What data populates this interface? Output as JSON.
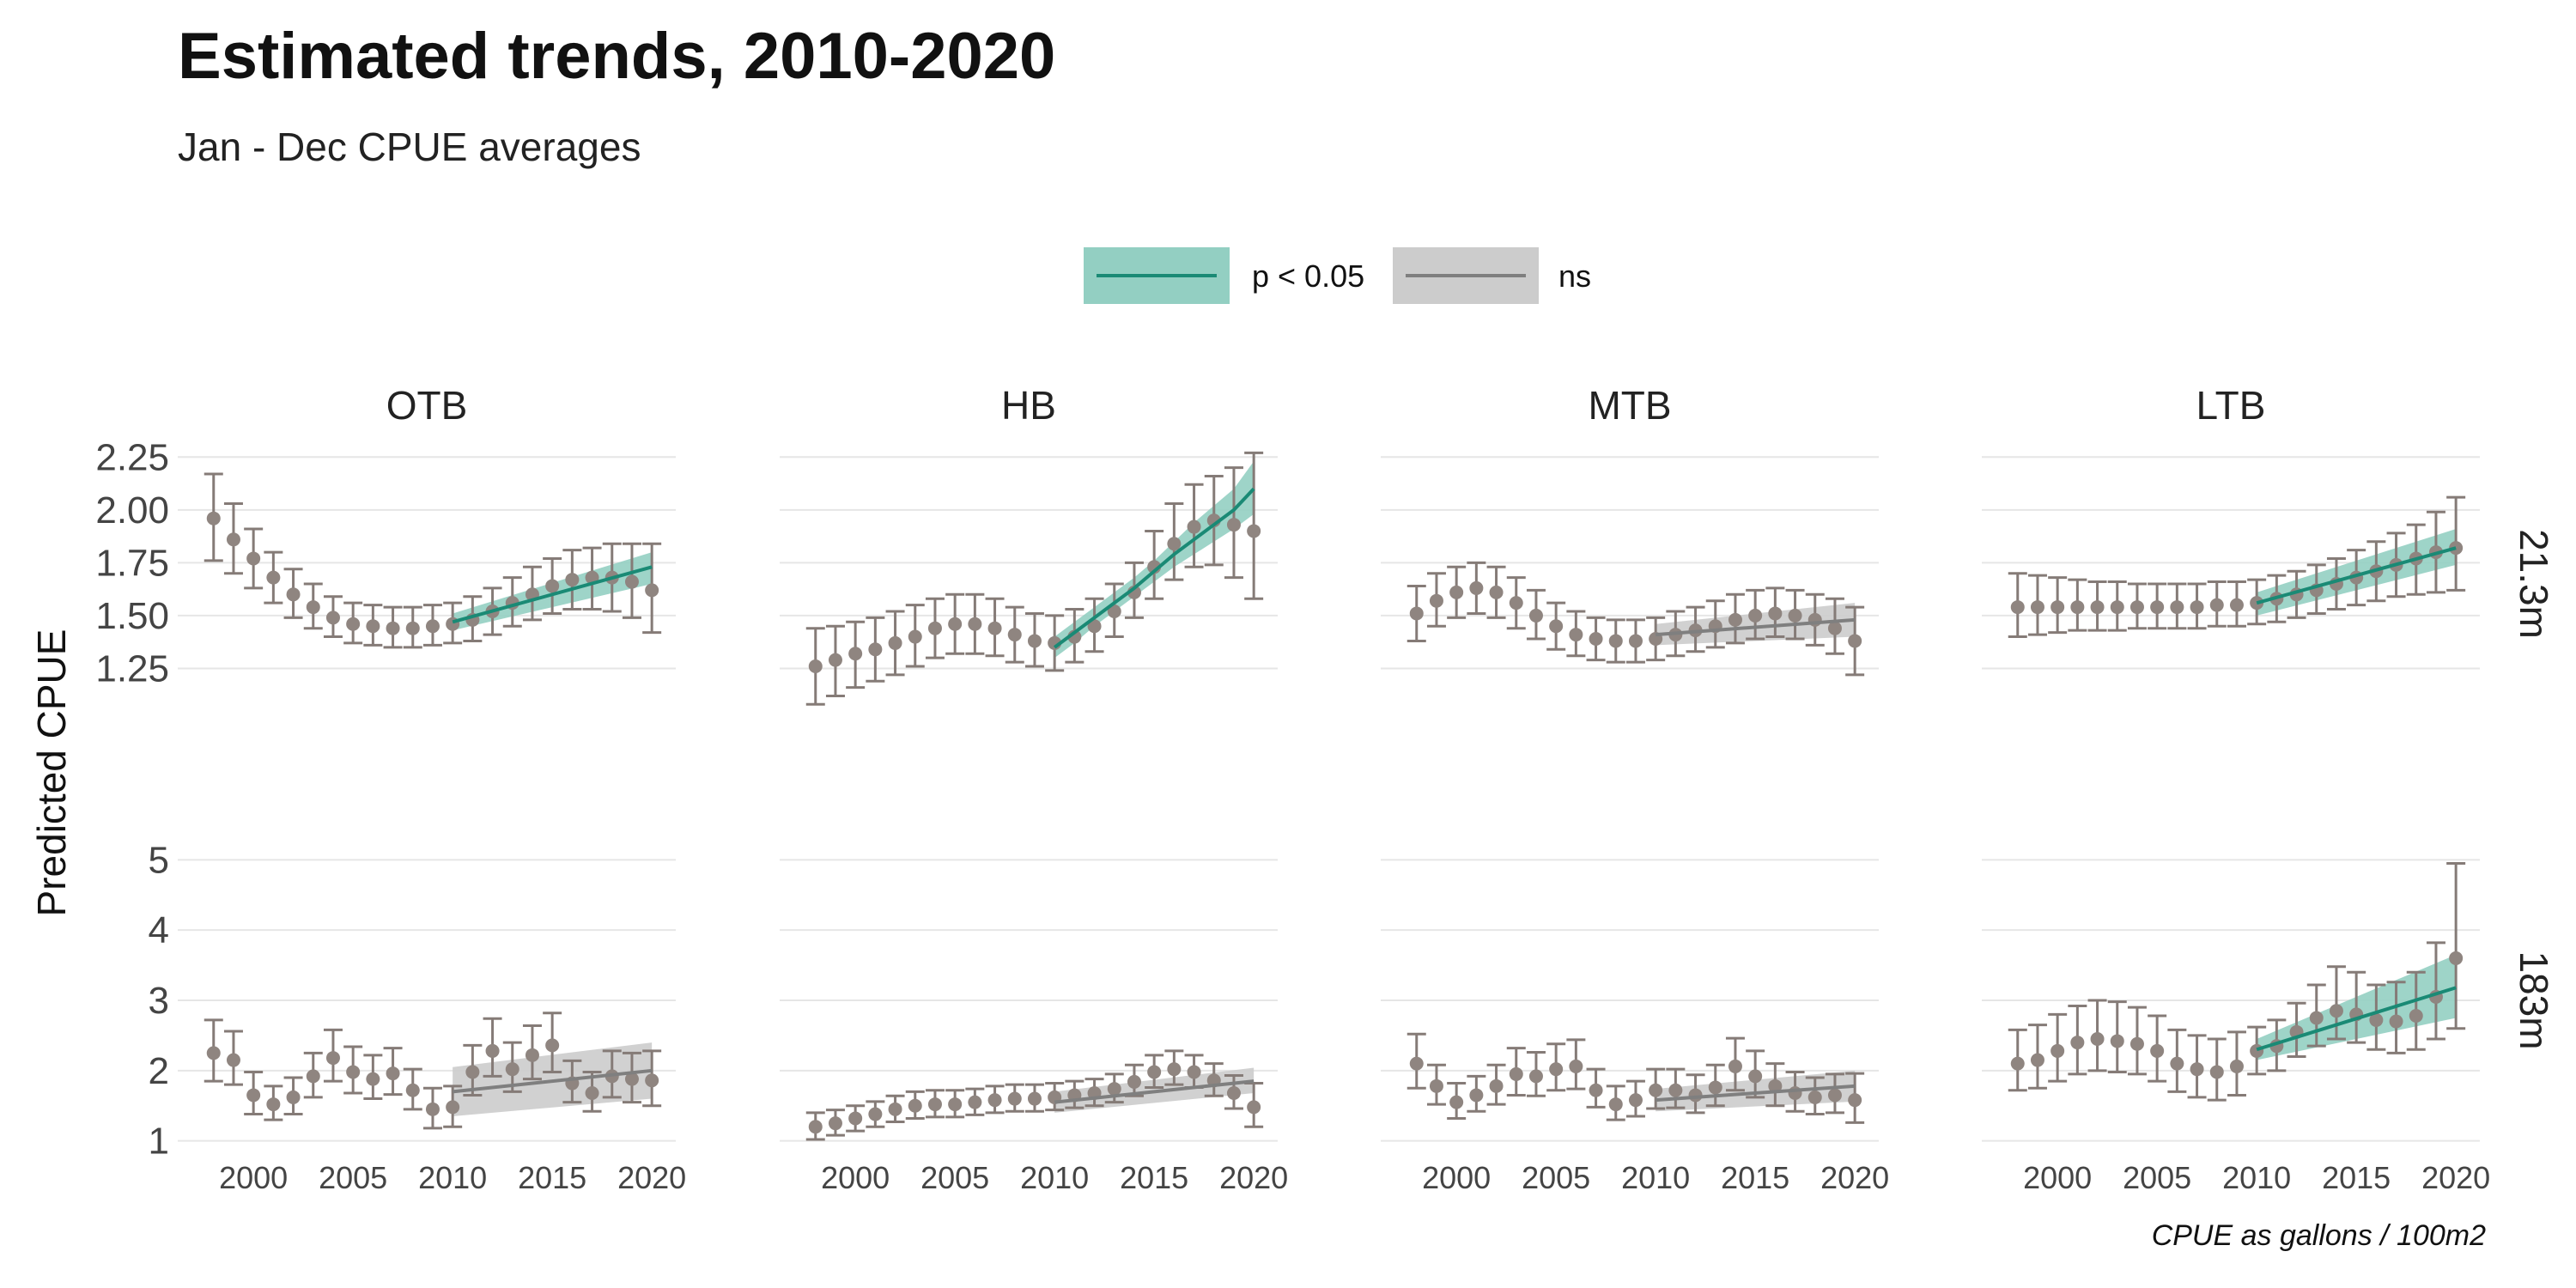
{
  "title": "Estimated trends, 2010-2020",
  "subtitle": "Jan - Dec CPUE averages",
  "caption": "CPUE as gallons / 100m2",
  "colors": {
    "significant": "#1a8a75",
    "significant_band": "#93cfc2",
    "ns_line": "#7f7f7f",
    "ns_band": "#cccccc",
    "points": "#8f8580",
    "grid": "#e6e6e6"
  },
  "chart_data": {
    "type": "scatter",
    "title": "Estimated trends, 2010-2020",
    "subtitle": "Jan - Dec CPUE averages",
    "ylabel": "Predicted CPUE",
    "xlabel": "",
    "caption": "CPUE as gallons / 100m2",
    "legend": {
      "placement": "top-center",
      "entries": [
        {
          "key": "sig",
          "label": "p < 0.05"
        },
        {
          "key": "ns",
          "label": "ns"
        }
      ]
    },
    "columns": [
      "OTB",
      "HB",
      "MTB",
      "LTB"
    ],
    "rows": [
      "21.3m",
      "183m"
    ],
    "x": [
      1998,
      1999,
      2000,
      2001,
      2002,
      2003,
      2004,
      2005,
      2006,
      2007,
      2008,
      2009,
      2010,
      2011,
      2012,
      2013,
      2014,
      2015,
      2016,
      2017,
      2018,
      2019,
      2020
    ],
    "xlim": [
      1996.2,
      2021.2
    ],
    "xticks": [
      2000,
      2005,
      2010,
      2015,
      2020
    ],
    "row_scales": {
      "21.3m": {
        "ylim": [
          1.0,
          2.3
        ],
        "yticks": [
          1.25,
          1.5,
          1.75,
          2.0,
          2.25
        ],
        "tick_labels": [
          "1.25",
          "1.50",
          "1.75",
          "2.00",
          "2.25"
        ]
      },
      "183m": {
        "ylim": [
          0.8,
          5.2
        ],
        "yticks": [
          1,
          2,
          3,
          4,
          5
        ],
        "tick_labels": [
          "1",
          "2",
          "3",
          "4",
          "5"
        ]
      }
    },
    "panels": [
      {
        "column": "OTB",
        "row": "21.3m",
        "trend": "sig",
        "y": [
          1.96,
          1.86,
          1.77,
          1.68,
          1.6,
          1.54,
          1.49,
          1.46,
          1.45,
          1.44,
          1.44,
          1.45,
          1.46,
          1.48,
          1.52,
          1.56,
          1.6,
          1.64,
          1.67,
          1.68,
          1.68,
          1.66,
          1.62
        ],
        "lo": [
          1.76,
          1.7,
          1.63,
          1.56,
          1.49,
          1.44,
          1.4,
          1.37,
          1.36,
          1.35,
          1.35,
          1.36,
          1.37,
          1.38,
          1.41,
          1.45,
          1.48,
          1.51,
          1.53,
          1.53,
          1.52,
          1.49,
          1.42
        ],
        "hi": [
          2.17,
          2.03,
          1.91,
          1.8,
          1.72,
          1.65,
          1.59,
          1.56,
          1.55,
          1.54,
          1.54,
          1.55,
          1.56,
          1.59,
          1.63,
          1.68,
          1.73,
          1.77,
          1.81,
          1.82,
          1.84,
          1.84,
          1.84
        ],
        "fit_x": [
          2010,
          2020
        ],
        "fit_y": [
          1.47,
          1.73
        ],
        "band_lo": [
          1.43,
          1.65
        ],
        "band_hi": [
          1.51,
          1.8
        ]
      },
      {
        "column": "HB",
        "row": "21.3m",
        "trend": "sig",
        "y": [
          1.26,
          1.29,
          1.32,
          1.34,
          1.37,
          1.4,
          1.44,
          1.46,
          1.46,
          1.44,
          1.41,
          1.38,
          1.37,
          1.4,
          1.45,
          1.52,
          1.61,
          1.73,
          1.84,
          1.92,
          1.95,
          1.93,
          1.9
        ],
        "lo": [
          1.08,
          1.12,
          1.16,
          1.19,
          1.22,
          1.26,
          1.3,
          1.32,
          1.32,
          1.31,
          1.28,
          1.26,
          1.24,
          1.28,
          1.33,
          1.4,
          1.49,
          1.58,
          1.67,
          1.73,
          1.74,
          1.68,
          1.58
        ],
        "hi": [
          1.44,
          1.45,
          1.47,
          1.49,
          1.52,
          1.55,
          1.58,
          1.6,
          1.6,
          1.58,
          1.54,
          1.51,
          1.5,
          1.53,
          1.58,
          1.65,
          1.75,
          1.9,
          2.03,
          2.12,
          2.16,
          2.2,
          2.27
        ],
        "fit_x": [
          2010,
          2011,
          2012,
          2013,
          2014,
          2015,
          2016,
          2017,
          2018,
          2019,
          2020
        ],
        "fit_y": [
          1.35,
          1.42,
          1.49,
          1.56,
          1.63,
          1.71,
          1.79,
          1.86,
          1.93,
          2.0,
          2.1
        ],
        "band_lo": [
          1.3,
          1.37,
          1.45,
          1.52,
          1.59,
          1.66,
          1.73,
          1.79,
          1.85,
          1.91,
          1.98
        ],
        "band_hi": [
          1.4,
          1.47,
          1.54,
          1.61,
          1.68,
          1.76,
          1.85,
          1.94,
          2.02,
          2.1,
          2.23
        ]
      },
      {
        "column": "MTB",
        "row": "21.3m",
        "trend": "ns",
        "y": [
          1.51,
          1.57,
          1.61,
          1.63,
          1.61,
          1.56,
          1.5,
          1.45,
          1.41,
          1.39,
          1.38,
          1.38,
          1.39,
          1.41,
          1.43,
          1.45,
          1.48,
          1.5,
          1.51,
          1.5,
          1.48,
          1.44,
          1.38
        ],
        "lo": [
          1.38,
          1.45,
          1.49,
          1.51,
          1.49,
          1.44,
          1.39,
          1.34,
          1.31,
          1.29,
          1.28,
          1.28,
          1.29,
          1.31,
          1.33,
          1.35,
          1.37,
          1.39,
          1.4,
          1.39,
          1.36,
          1.32,
          1.22
        ],
        "hi": [
          1.64,
          1.7,
          1.73,
          1.75,
          1.73,
          1.68,
          1.62,
          1.56,
          1.52,
          1.49,
          1.48,
          1.48,
          1.49,
          1.52,
          1.54,
          1.57,
          1.6,
          1.62,
          1.63,
          1.62,
          1.6,
          1.58,
          1.54
        ],
        "fit_x": [
          2010,
          2020
        ],
        "fit_y": [
          1.41,
          1.48
        ],
        "band_lo": [
          1.36,
          1.4
        ],
        "band_hi": [
          1.46,
          1.56
        ]
      },
      {
        "column": "LTB",
        "row": "21.3m",
        "trend": "sig",
        "y": [
          1.54,
          1.54,
          1.54,
          1.54,
          1.54,
          1.54,
          1.54,
          1.54,
          1.54,
          1.54,
          1.55,
          1.55,
          1.56,
          1.58,
          1.6,
          1.62,
          1.65,
          1.68,
          1.71,
          1.74,
          1.77,
          1.8,
          1.82
        ],
        "lo": [
          1.4,
          1.41,
          1.42,
          1.43,
          1.43,
          1.43,
          1.44,
          1.44,
          1.44,
          1.44,
          1.45,
          1.45,
          1.46,
          1.47,
          1.49,
          1.51,
          1.53,
          1.55,
          1.57,
          1.59,
          1.6,
          1.61,
          1.62
        ],
        "hi": [
          1.7,
          1.69,
          1.68,
          1.67,
          1.66,
          1.66,
          1.65,
          1.65,
          1.65,
          1.65,
          1.66,
          1.66,
          1.67,
          1.69,
          1.71,
          1.74,
          1.77,
          1.81,
          1.85,
          1.89,
          1.93,
          1.99,
          2.06
        ],
        "fit_x": [
          2010,
          2020
        ],
        "fit_y": [
          1.56,
          1.82
        ],
        "band_lo": [
          1.5,
          1.74
        ],
        "band_hi": [
          1.61,
          1.91
        ]
      },
      {
        "column": "OTB",
        "row": "183m",
        "trend": "ns",
        "y": [
          2.25,
          2.15,
          1.65,
          1.52,
          1.62,
          1.92,
          2.18,
          1.98,
          1.88,
          1.96,
          1.72,
          1.45,
          1.48,
          1.98,
          2.28,
          2.02,
          2.22,
          2.36,
          1.82,
          1.68,
          1.92,
          1.88,
          1.86
        ],
        "lo": [
          1.85,
          1.8,
          1.38,
          1.3,
          1.38,
          1.62,
          1.85,
          1.68,
          1.6,
          1.66,
          1.45,
          1.18,
          1.2,
          1.65,
          1.92,
          1.7,
          1.88,
          1.98,
          1.55,
          1.42,
          1.62,
          1.55,
          1.5
        ],
        "hi": [
          2.72,
          2.56,
          1.98,
          1.78,
          1.9,
          2.25,
          2.58,
          2.34,
          2.22,
          2.32,
          2.02,
          1.75,
          1.78,
          2.36,
          2.74,
          2.4,
          2.64,
          2.82,
          2.14,
          1.98,
          2.28,
          2.25,
          2.28
        ],
        "fit_x": [
          2010,
          2020
        ],
        "fit_y": [
          1.7,
          2.0
        ],
        "band_lo": [
          1.35,
          1.6
        ],
        "band_hi": [
          2.05,
          2.4
        ]
      },
      {
        "column": "HB",
        "row": "183m",
        "trend": "ns",
        "y": [
          1.2,
          1.25,
          1.32,
          1.38,
          1.45,
          1.5,
          1.52,
          1.52,
          1.55,
          1.58,
          1.6,
          1.6,
          1.62,
          1.65,
          1.68,
          1.74,
          1.84,
          1.98,
          2.02,
          1.98,
          1.86,
          1.68,
          1.48
        ],
        "lo": [
          1.02,
          1.08,
          1.14,
          1.2,
          1.27,
          1.32,
          1.34,
          1.34,
          1.37,
          1.4,
          1.42,
          1.42,
          1.44,
          1.47,
          1.5,
          1.55,
          1.64,
          1.76,
          1.8,
          1.76,
          1.64,
          1.46,
          1.2
        ],
        "hi": [
          1.4,
          1.44,
          1.5,
          1.56,
          1.64,
          1.7,
          1.72,
          1.72,
          1.74,
          1.78,
          1.8,
          1.8,
          1.82,
          1.85,
          1.88,
          1.95,
          2.08,
          2.22,
          2.28,
          2.22,
          2.1,
          1.93,
          1.82
        ],
        "fit_x": [
          2010,
          2020
        ],
        "fit_y": [
          1.55,
          1.85
        ],
        "band_lo": [
          1.4,
          1.68
        ],
        "band_hi": [
          1.7,
          2.04
        ]
      },
      {
        "column": "MTB",
        "row": "183m",
        "trend": "ns",
        "y": [
          2.1,
          1.78,
          1.55,
          1.65,
          1.78,
          1.95,
          1.92,
          2.02,
          2.06,
          1.72,
          1.52,
          1.58,
          1.72,
          1.72,
          1.65,
          1.76,
          2.06,
          1.92,
          1.78,
          1.68,
          1.62,
          1.65,
          1.58
        ],
        "lo": [
          1.75,
          1.52,
          1.32,
          1.42,
          1.52,
          1.65,
          1.64,
          1.72,
          1.74,
          1.48,
          1.3,
          1.35,
          1.46,
          1.47,
          1.4,
          1.5,
          1.72,
          1.62,
          1.5,
          1.42,
          1.38,
          1.4,
          1.26
        ],
        "hi": [
          2.52,
          2.08,
          1.82,
          1.92,
          2.08,
          2.32,
          2.26,
          2.38,
          2.44,
          2.02,
          1.78,
          1.85,
          2.02,
          2.02,
          1.94,
          2.08,
          2.46,
          2.28,
          2.1,
          1.98,
          1.9,
          1.95,
          1.96
        ],
        "fit_x": [
          2010,
          2020
        ],
        "fit_y": [
          1.58,
          1.78
        ],
        "band_lo": [
          1.42,
          1.56
        ],
        "band_hi": [
          1.74,
          2.0
        ]
      },
      {
        "column": "LTB",
        "row": "183m",
        "trend": "sig",
        "y": [
          2.1,
          2.15,
          2.28,
          2.4,
          2.45,
          2.42,
          2.38,
          2.28,
          2.1,
          2.02,
          1.98,
          2.06,
          2.28,
          2.35,
          2.55,
          2.75,
          2.85,
          2.8,
          2.72,
          2.7,
          2.78,
          3.05,
          3.6
        ],
        "lo": [
          1.72,
          1.75,
          1.85,
          1.95,
          2.0,
          1.98,
          1.95,
          1.85,
          1.7,
          1.62,
          1.58,
          1.65,
          1.95,
          2.0,
          2.2,
          2.35,
          2.45,
          2.4,
          2.3,
          2.25,
          2.3,
          2.45,
          2.6
        ],
        "hi": [
          2.58,
          2.65,
          2.8,
          2.92,
          3.0,
          2.98,
          2.9,
          2.78,
          2.58,
          2.5,
          2.45,
          2.55,
          2.62,
          2.72,
          2.96,
          3.22,
          3.48,
          3.4,
          3.22,
          3.26,
          3.4,
          3.82,
          4.95
        ],
        "fit_x": [
          2010,
          2020
        ],
        "fit_y": [
          2.3,
          3.18
        ],
        "band_lo": [
          2.15,
          2.75
        ],
        "band_hi": [
          2.45,
          3.65
        ]
      }
    ]
  }
}
